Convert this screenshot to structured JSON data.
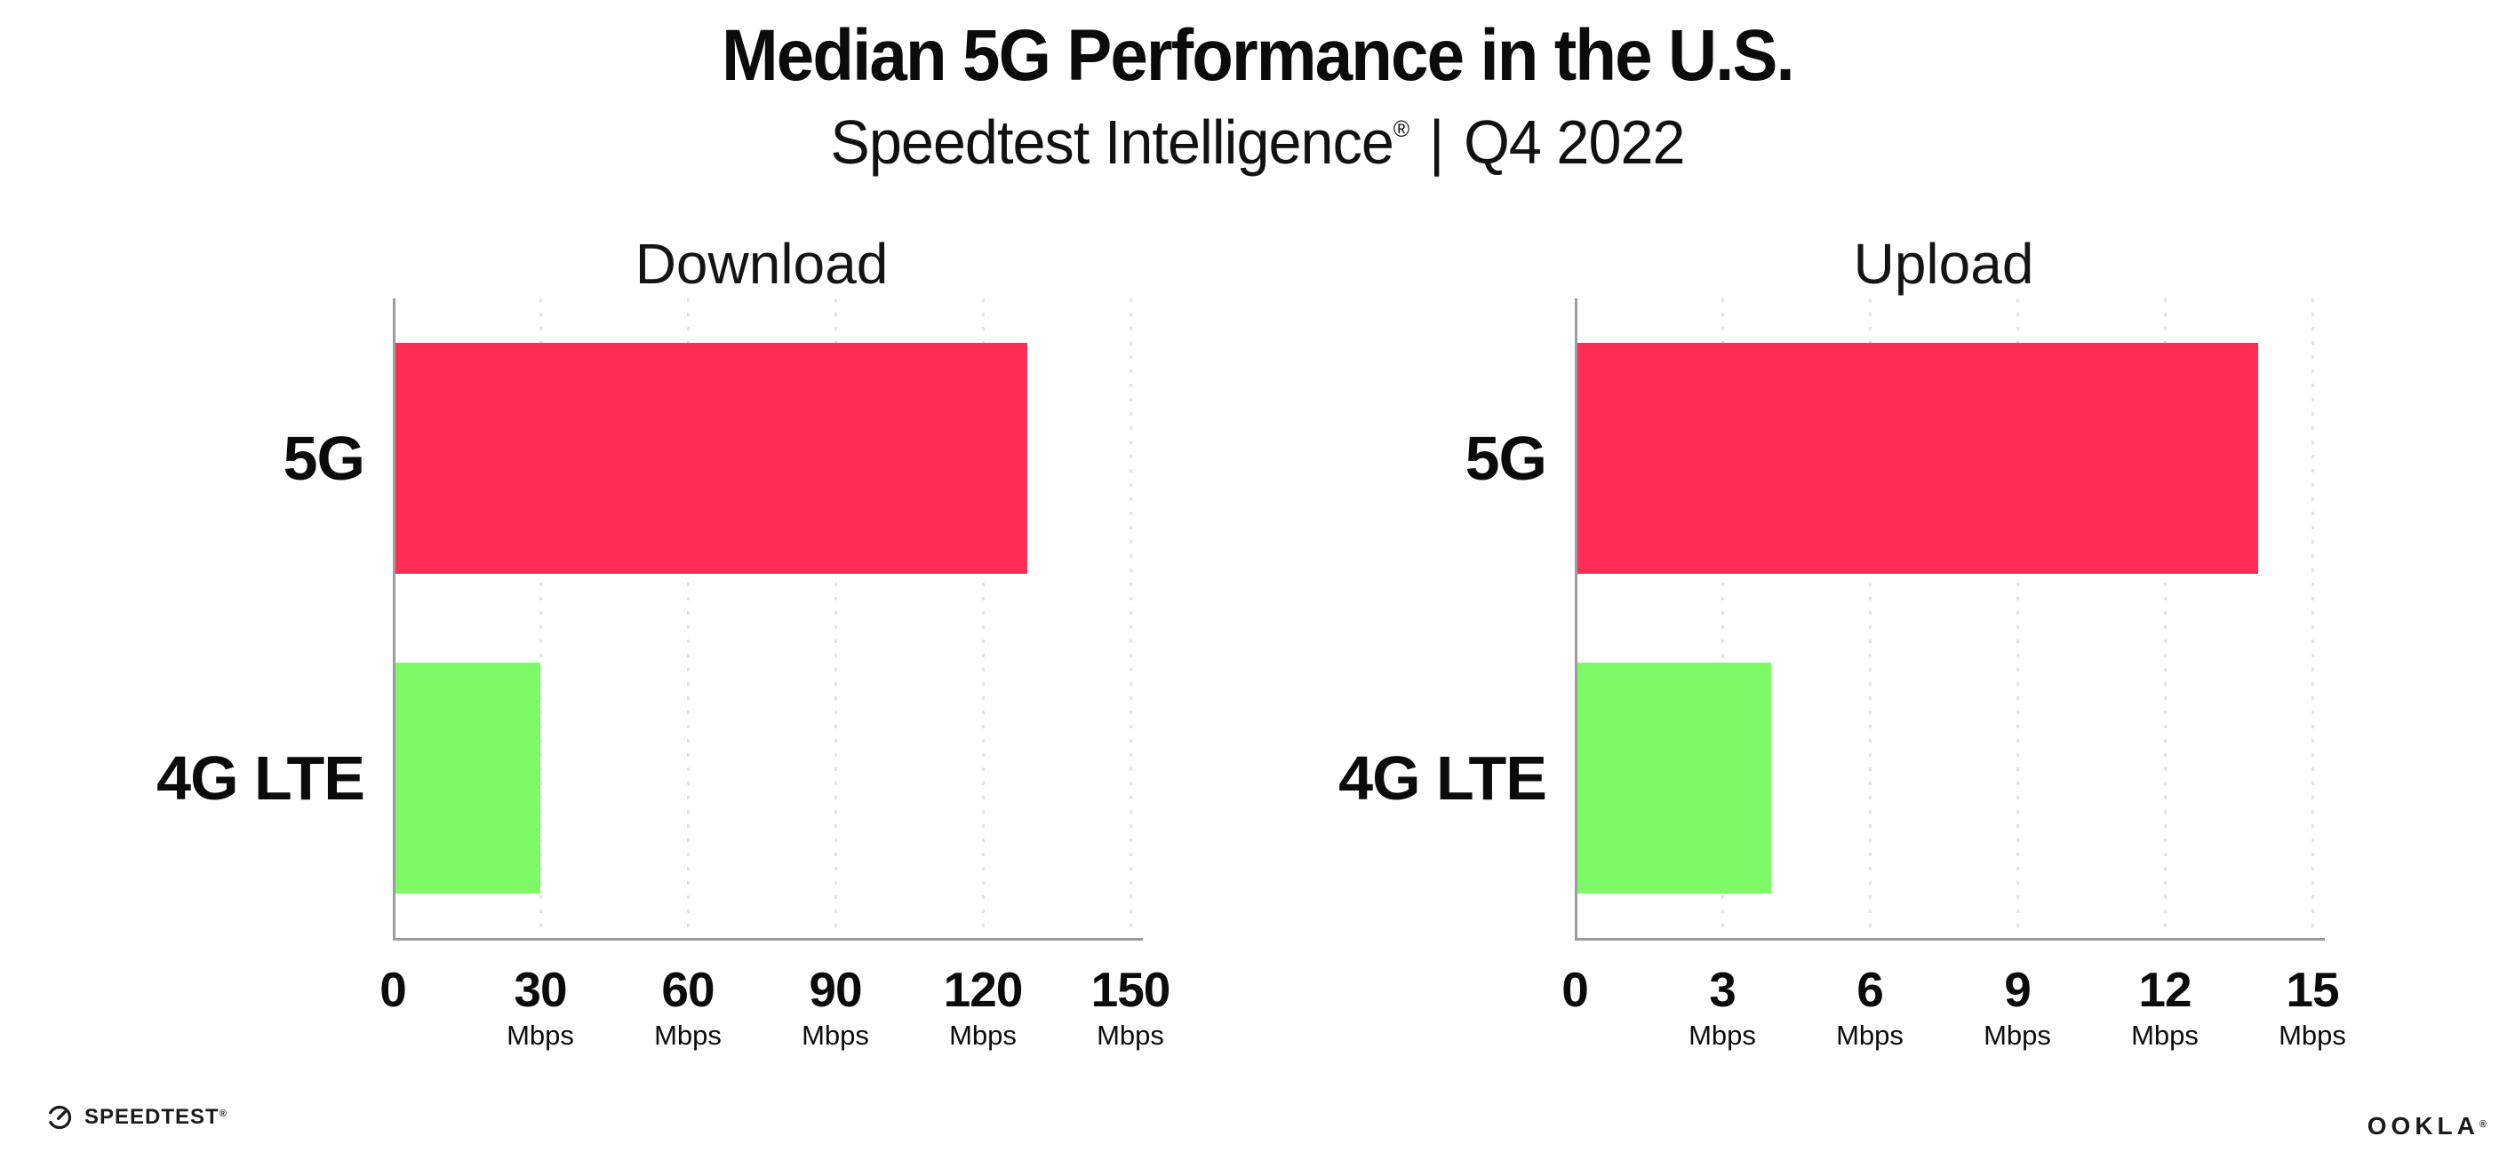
{
  "header": {
    "title": "Median 5G Performance in the U.S.",
    "subtitle": {
      "product": "Speedtest Intelligence",
      "registered_mark": "®",
      "separator": "|",
      "period": "Q4 2022"
    }
  },
  "chart_data": [
    {
      "type": "bar",
      "orientation": "horizontal",
      "title": "Download",
      "categories": [
        "5G",
        "4G LTE"
      ],
      "values": [
        129,
        30
      ],
      "unit": "Mbps",
      "xlim": [
        0,
        150
      ],
      "xticks": [
        0,
        30,
        60,
        90,
        120,
        150
      ],
      "tick_unit_label": "Mbps",
      "bar_colors": [
        "#FF2C55",
        "#7EFA67"
      ],
      "grid": "dotted vertical gridlines at each tick",
      "legend": "none"
    },
    {
      "type": "bar",
      "orientation": "horizontal",
      "title": "Upload",
      "categories": [
        "5G",
        "4G LTE"
      ],
      "values": [
        13.9,
        4
      ],
      "unit": "Mbps",
      "xlim": [
        0,
        15
      ],
      "xticks": [
        0,
        3,
        6,
        9,
        12,
        15
      ],
      "tick_unit_label": "Mbps",
      "bar_colors": [
        "#FF2C55",
        "#7EFA67"
      ],
      "grid": "dotted vertical gridlines at each tick",
      "legend": "none"
    }
  ],
  "footer": {
    "speedtest": {
      "icon": "gauge-icon",
      "label": "SPEEDTEST",
      "registered_mark": "®"
    },
    "ookla": {
      "label": "OOKLA",
      "registered_mark": "®"
    }
  },
  "colors": {
    "bar_5g": "#FF2C55",
    "bar_4g_lte": "#7EFA67",
    "axis": "#9B9BA0",
    "gridline": "#E2E2EC",
    "text": "#0B0B0B",
    "background": "#FFFFFF"
  }
}
